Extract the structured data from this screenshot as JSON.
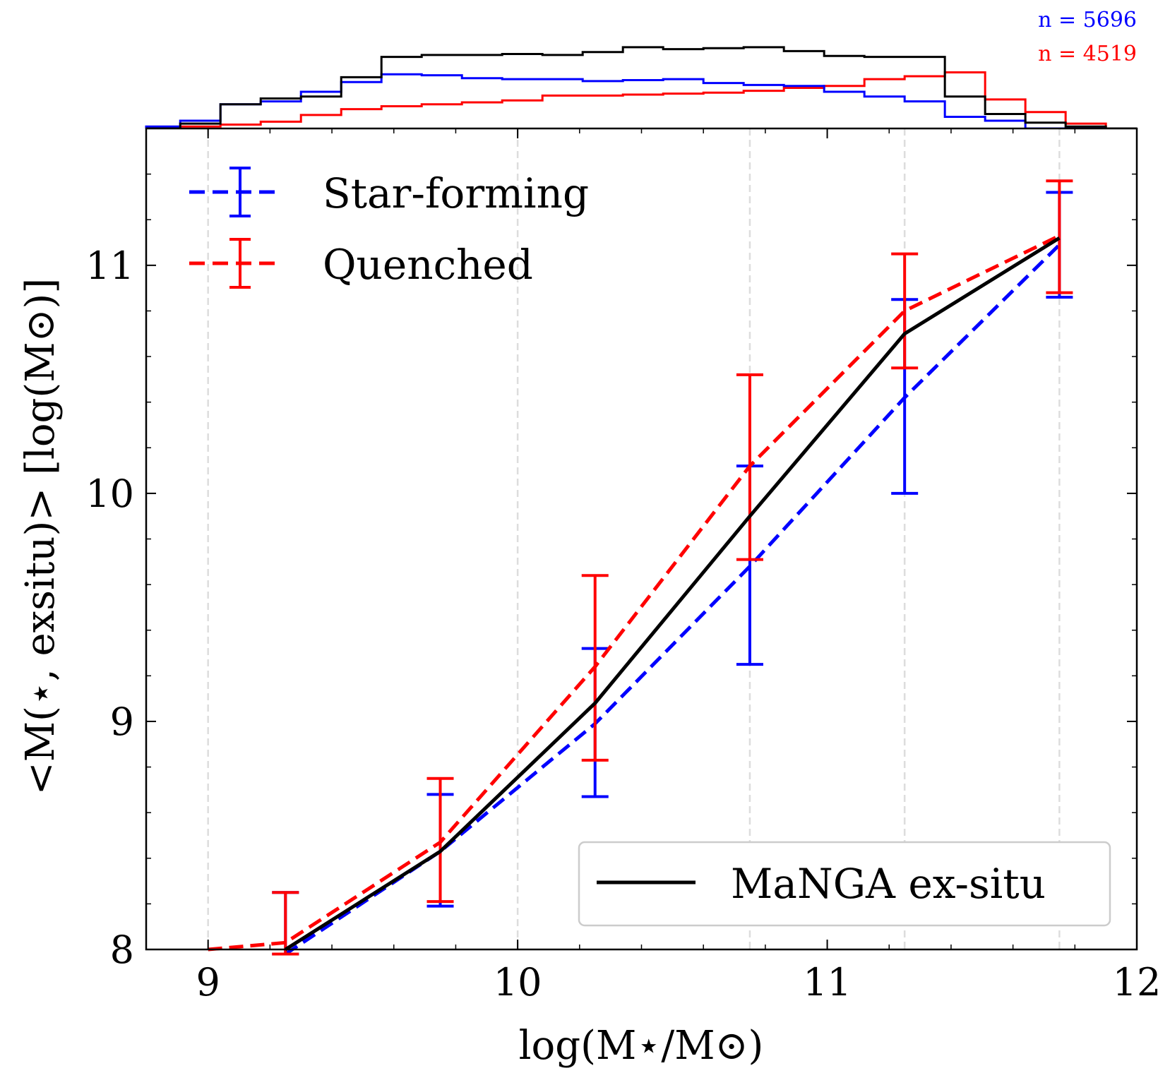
{
  "chart_data": {
    "type": "line",
    "xlabel": "log(M⋆/M⊙)",
    "ylabel": "<M(⋆, exsitu)> [log(M⊙)]",
    "xlim": [
      8.8,
      12.0
    ],
    "ylim": [
      8.0,
      11.6
    ],
    "xticks": [
      "9",
      "10",
      "11",
      "12"
    ],
    "yticks": [
      "8",
      "9",
      "10",
      "11"
    ],
    "xtick_values": [
      9,
      10,
      11,
      12
    ],
    "ytick_values": [
      8,
      9,
      10,
      11
    ],
    "vlines": [
      9.0,
      10.0,
      10.75,
      11.25,
      11.75
    ],
    "series": [
      {
        "name": "MaNGA ex-situ",
        "color": "#000000",
        "style": "solid",
        "x": [
          9.25,
          9.75,
          10.25,
          10.75,
          11.25,
          11.75
        ],
        "y": [
          8.0,
          8.43,
          9.08,
          9.9,
          10.7,
          11.12
        ]
      },
      {
        "name": "Star-forming",
        "color": "#0000ff",
        "style": "dashed",
        "x": [
          9.25,
          9.75,
          10.25,
          10.75,
          11.25,
          11.75
        ],
        "y": [
          7.98,
          8.43,
          8.99,
          9.68,
          10.42,
          11.09
        ],
        "err_low": [
          7.98,
          8.19,
          8.67,
          9.25,
          10.0,
          10.86
        ],
        "err_high": [
          8.25,
          8.68,
          9.32,
          10.12,
          10.85,
          11.32
        ]
      },
      {
        "name": "Quenched",
        "color": "#ff0000",
        "style": "dashed",
        "x": [
          9.0,
          9.25,
          9.75,
          10.25,
          10.75,
          11.25,
          11.75
        ],
        "y": [
          8.0,
          8.03,
          8.47,
          9.24,
          10.12,
          10.8,
          11.13
        ],
        "err_low": [
          null,
          7.98,
          8.21,
          8.83,
          9.71,
          10.55,
          10.88
        ],
        "err_high": [
          null,
          8.25,
          8.75,
          9.64,
          10.52,
          11.05,
          11.37
        ]
      }
    ],
    "histogram": {
      "bin_edges": [
        8.8,
        8.91,
        9.04,
        9.17,
        9.3,
        9.43,
        9.56,
        9.69,
        9.82,
        9.95,
        10.08,
        10.21,
        10.34,
        10.47,
        10.6,
        10.73,
        10.86,
        10.99,
        11.12,
        11.25,
        11.38,
        11.51,
        11.64,
        11.77,
        11.9,
        12.0
      ],
      "total": [
        0.0,
        0.05,
        0.25,
        0.31,
        0.33,
        0.53,
        0.74,
        0.76,
        0.76,
        0.77,
        0.76,
        0.79,
        0.84,
        0.82,
        0.83,
        0.84,
        0.8,
        0.75,
        0.74,
        0.74,
        0.33,
        0.15,
        0.06,
        0.02,
        0.0
      ],
      "star_forming": [
        0.02,
        0.08,
        0.25,
        0.28,
        0.38,
        0.48,
        0.56,
        0.55,
        0.52,
        0.51,
        0.51,
        0.49,
        0.5,
        0.51,
        0.47,
        0.45,
        0.44,
        0.38,
        0.33,
        0.28,
        0.12,
        0.08,
        0.0,
        0.0,
        0.0
      ],
      "quenched": [
        0.0,
        0.02,
        0.04,
        0.07,
        0.14,
        0.2,
        0.23,
        0.25,
        0.27,
        0.29,
        0.34,
        0.34,
        0.35,
        0.36,
        0.37,
        0.39,
        0.42,
        0.44,
        0.51,
        0.54,
        0.58,
        0.3,
        0.17,
        0.05,
        0.0
      ]
    },
    "counts": [
      {
        "label": "n = 5696",
        "color": "#0000ff"
      },
      {
        "label": "n = 4519",
        "color": "#ff0000"
      }
    ],
    "legend_upper_left": [
      "Star-forming",
      "Quenched"
    ],
    "legend_lower_right": [
      "MaNGA ex-situ"
    ]
  }
}
